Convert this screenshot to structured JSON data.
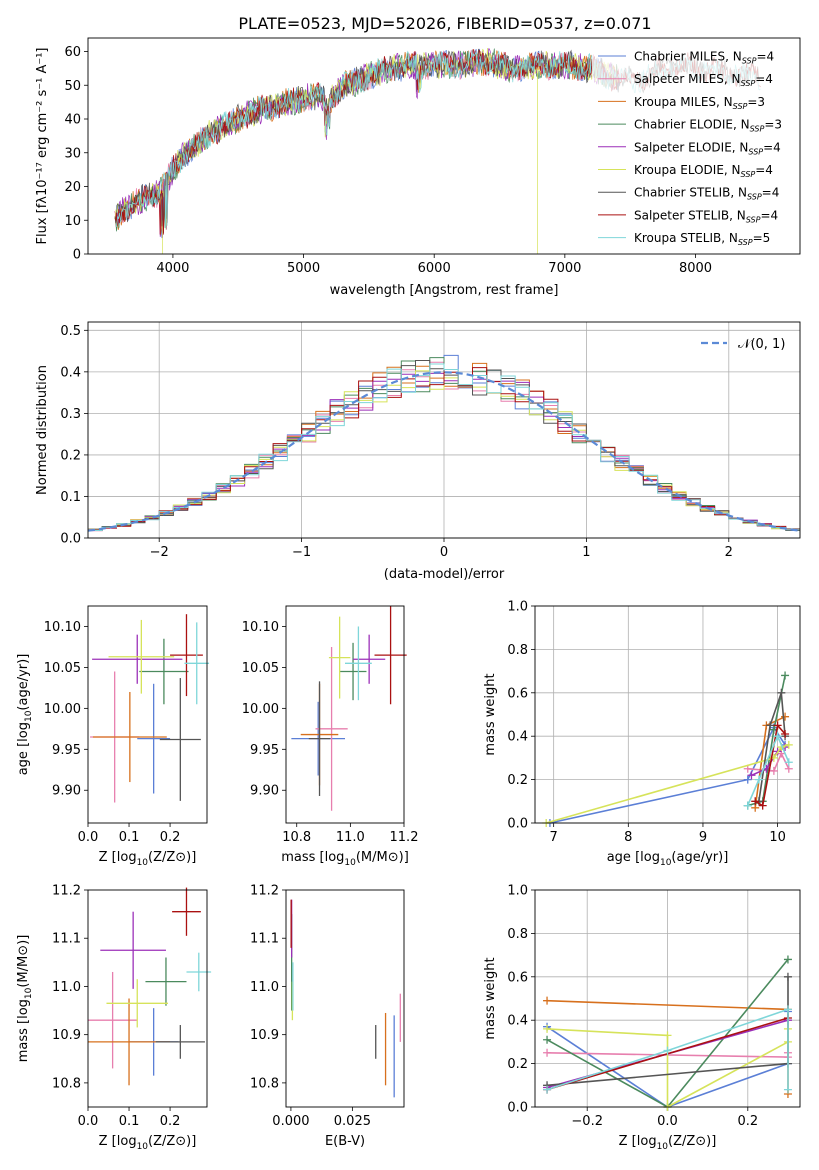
{
  "figure_title": "PLATE=0523, MJD=52026, FIBERID=0537, z=0.071",
  "colors": {
    "ChabrierMILES": "#5b7fd6",
    "SalpeterMILES": "#e77fae",
    "KroupaMILES": "#d7701d",
    "ChabrierELODIE": "#4b8a5e",
    "SalpeterELODIE": "#9b2fb8",
    "KroupaELODIE": "#d6e35a",
    "ChabrierSTELIB": "#555555",
    "SalpeterSTELIB": "#aa1111",
    "KroupaSTELIB": "#7fd6d9"
  },
  "chart_data": [
    {
      "id": "spectrum",
      "type": "line",
      "xlabel": "wavelength [Angstrom, rest frame]",
      "ylabel": "Flux [fλ10⁻¹⁷ erg cm⁻² s⁻¹ A⁻¹]",
      "xlim": [
        3350,
        8800
      ],
      "ylim": [
        0,
        64
      ],
      "xticks": [
        "4000",
        "5000",
        "6000",
        "7000",
        "8000"
      ],
      "yticks": [
        "0",
        "10",
        "20",
        "30",
        "40",
        "50",
        "60"
      ],
      "grid": false,
      "legend_position": "top-right",
      "envelope_x": [
        3550,
        3600,
        3700,
        3800,
        3900,
        4000,
        4100,
        4200,
        4300,
        4400,
        4500,
        4600,
        4700,
        4800,
        4900,
        5000,
        5100,
        5200,
        5300,
        5400,
        5500,
        5600,
        5700,
        5800,
        5900,
        6000,
        6200,
        6400,
        6600,
        6800,
        7000,
        7200,
        7400,
        7600,
        7800,
        8000,
        8200,
        8400,
        8500
      ],
      "envelope_y": [
        10,
        12,
        15,
        17,
        18,
        25,
        30,
        33,
        36,
        38,
        40,
        42,
        43,
        44,
        45,
        46,
        47,
        45,
        50,
        51,
        53,
        54,
        55,
        56,
        56,
        56,
        56,
        57,
        55,
        56,
        56,
        55,
        52,
        52,
        56,
        55,
        54,
        53,
        53
      ],
      "series": [
        {
          "name": "Chabrier MILES, N_SSP=4",
          "color_key": "ChabrierMILES",
          "legend": "Chabrier MILES, N",
          "sub": "SSP",
          "tail": "=4"
        },
        {
          "name": "Salpeter MILES, N_SSP=4",
          "color_key": "SalpeterMILES",
          "legend": "Salpeter MILES, N",
          "sub": "SSP",
          "tail": "=4"
        },
        {
          "name": "Kroupa MILES, N_SSP=3",
          "color_key": "KroupaMILES",
          "legend": "Kroupa MILES, N",
          "sub": "SSP",
          "tail": "=3"
        },
        {
          "name": "Chabrier ELODIE, N_SSP=3",
          "color_key": "ChabrierELODIE",
          "legend": "Chabrier ELODIE, N",
          "sub": "SSP",
          "tail": "=3"
        },
        {
          "name": "Salpeter ELODIE, N_SSP=4",
          "color_key": "SalpeterELODIE",
          "legend": "Salpeter ELODIE, N",
          "sub": "SSP",
          "tail": "=4"
        },
        {
          "name": "Kroupa ELODIE, N_SSP=4",
          "color_key": "KroupaELODIE",
          "legend": "Kroupa ELODIE, N",
          "sub": "SSP",
          "tail": "=4"
        },
        {
          "name": "Chabrier STELIB, N_SSP=4",
          "color_key": "ChabrierSTELIB",
          "legend": "Chabrier STELIB, N",
          "sub": "SSP",
          "tail": "=4"
        },
        {
          "name": "Salpeter STELIB, N_SSP=4",
          "color_key": "SalpeterSTELIB",
          "legend": "Salpeter STELIB, N",
          "sub": "SSP",
          "tail": "=4"
        },
        {
          "name": "Kroupa STELIB, N_SSP=5",
          "color_key": "KroupaSTELIB",
          "legend": "Kroupa STELIB, N",
          "sub": "SSP",
          "tail": "=5"
        }
      ]
    },
    {
      "id": "residuals",
      "type": "histogram",
      "xlabel": "(data-model)/error",
      "ylabel": "Normed distribution",
      "xlim": [
        -2.5,
        2.5
      ],
      "ylim": [
        0,
        0.52
      ],
      "xticks": [
        "−2",
        "−1",
        "0",
        "1",
        "2"
      ],
      "yticks": [
        "0.0",
        "0.1",
        "0.2",
        "0.3",
        "0.4",
        "0.5"
      ],
      "grid": true,
      "bin_width": 0.1,
      "legend_position": "top-right",
      "legend_label": "𝒩(0, 1)",
      "reference_curve": "normal(0,1)"
    },
    {
      "id": "age_vs_Z",
      "type": "errorbar",
      "xlabel_main": "Z [log",
      "xlabel_sub": "10",
      "xlabel_tail": "(Z/Z⊙)]",
      "ylabel_main": "age  [log",
      "ylabel_sub": "10",
      "ylabel_tail": "(age/yr)]",
      "xlim": [
        0,
        0.29
      ],
      "ylim": [
        9.86,
        10.125
      ],
      "xticks": [
        "0.0",
        "0.1",
        "0.2"
      ],
      "yticks": [
        "9.90",
        "9.95",
        "10.00",
        "10.05",
        "10.10"
      ],
      "points": [
        {
          "c": "ChabrierMILES",
          "x": 0.16,
          "y": 9.963,
          "xerr": 0.04,
          "yerr": 0.067
        },
        {
          "c": "SalpeterMILES",
          "x": 0.065,
          "y": 9.965,
          "xerr": 0.06,
          "yerr": 0.08
        },
        {
          "c": "KroupaMILES",
          "x": 0.102,
          "y": 9.965,
          "xerr": 0.09,
          "yerr": 0.055
        },
        {
          "c": "ChabrierELODIE",
          "x": 0.185,
          "y": 10.045,
          "xerr": 0.06,
          "yerr": 0.04
        },
        {
          "c": "SalpeterELODIE",
          "x": 0.12,
          "y": 10.06,
          "xerr": 0.11,
          "yerr": 0.03
        },
        {
          "c": "KroupaELODIE",
          "x": 0.13,
          "y": 10.063,
          "xerr": 0.08,
          "yerr": 0.045
        },
        {
          "c": "ChabrierSTELIB",
          "x": 0.225,
          "y": 9.962,
          "xerr": 0.05,
          "yerr": 0.075
        },
        {
          "c": "SalpeterSTELIB",
          "x": 0.24,
          "y": 10.065,
          "xerr": 0.04,
          "yerr": 0.05
        },
        {
          "c": "KroupaSTELIB",
          "x": 0.265,
          "y": 10.055,
          "xerr": 0.03,
          "yerr": 0.05
        }
      ]
    },
    {
      "id": "age_vs_mass",
      "type": "errorbar",
      "xlabel_main": "mass [log",
      "xlabel_sub": "10",
      "xlabel_tail": "(M/M⊙)]",
      "xlim": [
        10.76,
        11.2
      ],
      "ylim": [
        9.86,
        10.125
      ],
      "xticks": [
        "10.8",
        "11.0",
        "11.2"
      ],
      "yticks": [
        "9.90",
        "9.95",
        "10.00",
        "10.05",
        "10.10"
      ],
      "points": [
        {
          "c": "ChabrierMILES",
          "x": 10.88,
          "y": 9.963,
          "xerr": 0.1,
          "yerr": 0.045
        },
        {
          "c": "SalpeterMILES",
          "x": 10.93,
          "y": 9.975,
          "xerr": 0.06,
          "yerr": 0.1
        },
        {
          "c": "KroupaMILES",
          "x": 10.885,
          "y": 9.968,
          "xerr": 0.07,
          "yerr": 0.062
        },
        {
          "c": "ChabrierELODIE",
          "x": 11.01,
          "y": 10.045,
          "xerr": 0.05,
          "yerr": 0.035
        },
        {
          "c": "SalpeterELODIE",
          "x": 11.07,
          "y": 10.06,
          "xerr": 0.06,
          "yerr": 0.03
        },
        {
          "c": "KroupaELODIE",
          "x": 10.96,
          "y": 10.062,
          "xerr": 0.04,
          "yerr": 0.05
        },
        {
          "c": "ChabrierSTELIB",
          "x": 10.885,
          "y": 9.963,
          "xerr": 0.04,
          "yerr": 0.07
        },
        {
          "c": "SalpeterSTELIB",
          "x": 11.15,
          "y": 10.065,
          "xerr": 0.06,
          "yerr": 0.06
        },
        {
          "c": "KroupaSTELIB",
          "x": 11.03,
          "y": 10.055,
          "xerr": 0.05,
          "yerr": 0.045
        }
      ]
    },
    {
      "id": "mass_weight_vs_age",
      "type": "line",
      "xlabel_main": "age  [log",
      "xlabel_sub": "10",
      "xlabel_tail": "(age/yr)]",
      "ylabel": "mass weight",
      "xlim": [
        6.75,
        10.3
      ],
      "ylim": [
        0,
        1.0
      ],
      "xticks": [
        "7",
        "8",
        "9",
        "10"
      ],
      "yticks": [
        "0.0",
        "0.2",
        "0.4",
        "0.6",
        "0.8",
        "1.0"
      ],
      "grid": true,
      "series": [
        {
          "c": "ChabrierMILES",
          "x": [
            6.95,
            9.6,
            9.95,
            10.1
          ],
          "y": [
            0.0,
            0.2,
            0.44,
            0.36
          ]
        },
        {
          "c": "SalpeterMILES",
          "x": [
            9.6,
            9.95,
            10.05,
            10.15
          ],
          "y": [
            0.25,
            0.24,
            0.32,
            0.25
          ]
        },
        {
          "c": "KroupaMILES",
          "x": [
            9.7,
            9.85,
            10.1
          ],
          "y": [
            0.07,
            0.45,
            0.49
          ]
        },
        {
          "c": "ChabrierELODIE",
          "x": [
            9.6,
            9.8,
            9.95,
            10.1
          ],
          "y": [
            0.08,
            0.1,
            0.43,
            0.68
          ]
        },
        {
          "c": "SalpeterELODIE",
          "x": [
            9.65,
            9.85,
            10.0,
            10.1
          ],
          "y": [
            0.22,
            0.25,
            0.33,
            0.35
          ]
        },
        {
          "c": "KroupaELODIE",
          "x": [
            6.9,
            9.95,
            10.05,
            10.15
          ],
          "y": [
            0.0,
            0.3,
            0.35,
            0.36
          ]
        },
        {
          "c": "ChabrierSTELIB",
          "x": [
            9.75,
            9.9,
            10.05,
            10.1
          ],
          "y": [
            0.1,
            0.45,
            0.6,
            0.4
          ]
        },
        {
          "c": "SalpeterSTELIB",
          "x": [
            9.7,
            9.8,
            10.0,
            10.1
          ],
          "y": [
            0.1,
            0.08,
            0.45,
            0.41
          ]
        },
        {
          "c": "KroupaSTELIB",
          "x": [
            9.6,
            9.75,
            10.0,
            10.15
          ],
          "y": [
            0.08,
            0.2,
            0.4,
            0.28
          ]
        }
      ]
    },
    {
      "id": "mass_vs_Z",
      "type": "errorbar",
      "xlabel_main": "Z [log",
      "xlabel_sub": "10",
      "xlabel_tail": "(Z/Z⊙)]",
      "ylabel_main": "mass [log",
      "ylabel_sub": "10",
      "ylabel_tail": "(M/M⊙)]",
      "xlim": [
        0,
        0.29
      ],
      "ylim": [
        10.75,
        11.2
      ],
      "xticks": [
        "0.0",
        "0.1",
        "0.2"
      ],
      "yticks": [
        "10.8",
        "10.9",
        "11.0",
        "11.1",
        "11.2"
      ],
      "points": [
        {
          "c": "ChabrierMILES",
          "x": 0.16,
          "y": 10.885,
          "xerr": 0.06,
          "yerr": 0.07
        },
        {
          "c": "SalpeterMILES",
          "x": 0.06,
          "y": 10.93,
          "xerr": 0.06,
          "yerr": 0.1
        },
        {
          "c": "KroupaMILES",
          "x": 0.1,
          "y": 10.885,
          "xerr": 0.1,
          "yerr": 0.09
        },
        {
          "c": "ChabrierELODIE",
          "x": 0.19,
          "y": 11.01,
          "xerr": 0.05,
          "yerr": 0.05
        },
        {
          "c": "SalpeterELODIE",
          "x": 0.11,
          "y": 11.075,
          "xerr": 0.08,
          "yerr": 0.08
        },
        {
          "c": "KroupaELODIE",
          "x": 0.12,
          "y": 10.965,
          "xerr": 0.075,
          "yerr": 0.05
        },
        {
          "c": "ChabrierSTELIB",
          "x": 0.225,
          "y": 10.885,
          "xerr": 0.06,
          "yerr": 0.035
        },
        {
          "c": "SalpeterSTELIB",
          "x": 0.24,
          "y": 11.155,
          "xerr": 0.035,
          "yerr": 0.05
        },
        {
          "c": "KroupaSTELIB",
          "x": 0.27,
          "y": 11.03,
          "xerr": 0.03,
          "yerr": 0.04
        }
      ]
    },
    {
      "id": "mass_vs_ebv",
      "type": "errorbar",
      "xlabel": "E(B-V)",
      "xlim": [
        -0.002,
        0.046
      ],
      "ylim": [
        10.75,
        11.2
      ],
      "xticks": [
        "0.000",
        "0.025"
      ],
      "yticks": [
        "10.8",
        "10.9",
        "11.0",
        "11.1",
        "11.2"
      ],
      "points": [
        {
          "c": "ChabrierMILES",
          "x": 0.042,
          "y": 10.855,
          "xerr": 0,
          "yerr": 0.085
        },
        {
          "c": "SalpeterMILES",
          "x": 0.0445,
          "y": 10.935,
          "xerr": 0,
          "yerr": 0.05
        },
        {
          "c": "KroupaMILES",
          "x": 0.0385,
          "y": 10.87,
          "xerr": 0,
          "yerr": 0.075
        },
        {
          "c": "ChabrierELODIE",
          "x": 0.0003,
          "y": 11.05,
          "xerr": 0,
          "yerr": 0.1
        },
        {
          "c": "SalpeterELODIE",
          "x": 0.0003,
          "y": 11.12,
          "xerr": 0,
          "yerr": 0.06
        },
        {
          "c": "KroupaELODIE",
          "x": 0.0006,
          "y": 10.97,
          "xerr": 0,
          "yerr": 0.04
        },
        {
          "c": "ChabrierSTELIB",
          "x": 0.0345,
          "y": 10.885,
          "xerr": 0,
          "yerr": 0.035
        },
        {
          "c": "SalpeterSTELIB",
          "x": 0.0001,
          "y": 11.13,
          "xerr": 0,
          "yerr": 0.05
        },
        {
          "c": "KroupaSTELIB",
          "x": 0.0008,
          "y": 11.0,
          "xerr": 0,
          "yerr": 0.05
        }
      ]
    },
    {
      "id": "mass_weight_vs_Z",
      "type": "line",
      "xlabel_main": "Z [log",
      "xlabel_sub": "10",
      "xlabel_tail": "(Z/Z⊙)]",
      "ylabel": "mass weight",
      "xlim": [
        -0.33,
        0.33
      ],
      "ylim": [
        0,
        1.0
      ],
      "xticks": [
        "−0.2",
        "0.0",
        "0.2"
      ],
      "yticks": [
        "0.0",
        "0.2",
        "0.4",
        "0.6",
        "0.8",
        "1.0"
      ],
      "grid": true,
      "series": [
        {
          "c": "ChabrierMILES",
          "x": [
            -0.3,
            0.0,
            0.3,
            0.3
          ],
          "y": [
            0.37,
            0.0,
            0.2,
            0.44
          ]
        },
        {
          "c": "SalpeterMILES",
          "x": [
            -0.3,
            0.3,
            0.3
          ],
          "y": [
            0.25,
            0.23,
            0.25
          ]
        },
        {
          "c": "KroupaMILES",
          "x": [
            -0.3,
            0.3,
            0.3
          ],
          "y": [
            0.49,
            0.45,
            0.06
          ]
        },
        {
          "c": "ChabrierELODIE",
          "x": [
            -0.3,
            0.0,
            0.3
          ],
          "y": [
            0.31,
            0.0,
            0.68
          ]
        },
        {
          "c": "SalpeterELODIE",
          "x": [
            -0.3,
            0.3
          ],
          "y": [
            0.09,
            0.4
          ]
        },
        {
          "c": "KroupaELODIE",
          "x": [
            -0.3,
            0.0,
            0.0,
            0.3,
            0.3
          ],
          "y": [
            0.36,
            0.33,
            0.0,
            0.3,
            0.36
          ]
        },
        {
          "c": "ChabrierSTELIB",
          "x": [
            -0.3,
            0.3,
            0.3
          ],
          "y": [
            0.1,
            0.2,
            0.6
          ]
        },
        {
          "c": "SalpeterSTELIB",
          "x": [
            -0.3,
            0.3
          ],
          "y": [
            0.08,
            0.41
          ]
        },
        {
          "c": "KroupaSTELIB",
          "x": [
            -0.3,
            0.0,
            0.3,
            0.3
          ],
          "y": [
            0.08,
            0.26,
            0.45,
            0.08
          ]
        }
      ]
    }
  ]
}
